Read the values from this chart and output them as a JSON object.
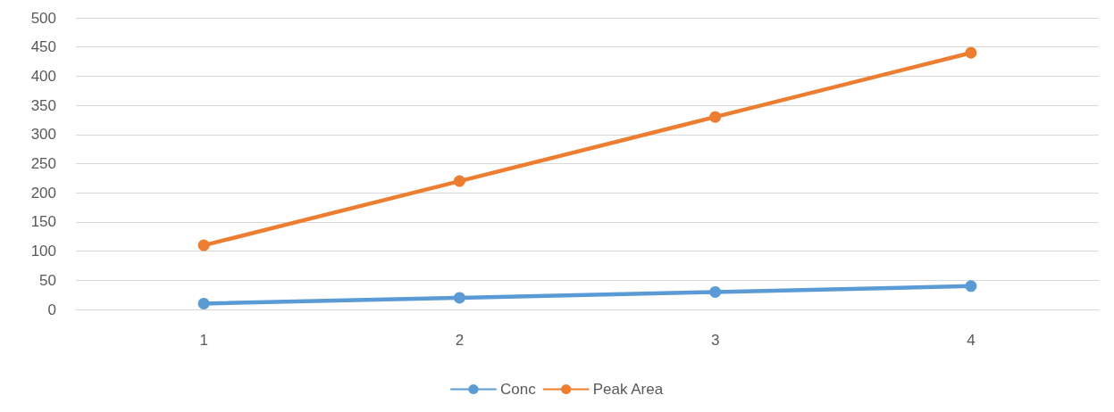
{
  "chart_data": {
    "type": "line",
    "categories": [
      "1",
      "2",
      "3",
      "4"
    ],
    "series": [
      {
        "name": "Conc",
        "color": "#5b9bd5",
        "values": [
          10,
          20,
          30,
          40
        ]
      },
      {
        "name": "Peak Area",
        "color": "#ed7d31",
        "values": [
          110,
          220,
          330,
          440
        ]
      }
    ],
    "ylim": [
      0,
      500
    ],
    "yticks": [
      0,
      50,
      100,
      150,
      200,
      250,
      300,
      350,
      400,
      450,
      500
    ],
    "grid": "y",
    "legend": "bottom",
    "marker": "circle",
    "line_style": "solid"
  }
}
